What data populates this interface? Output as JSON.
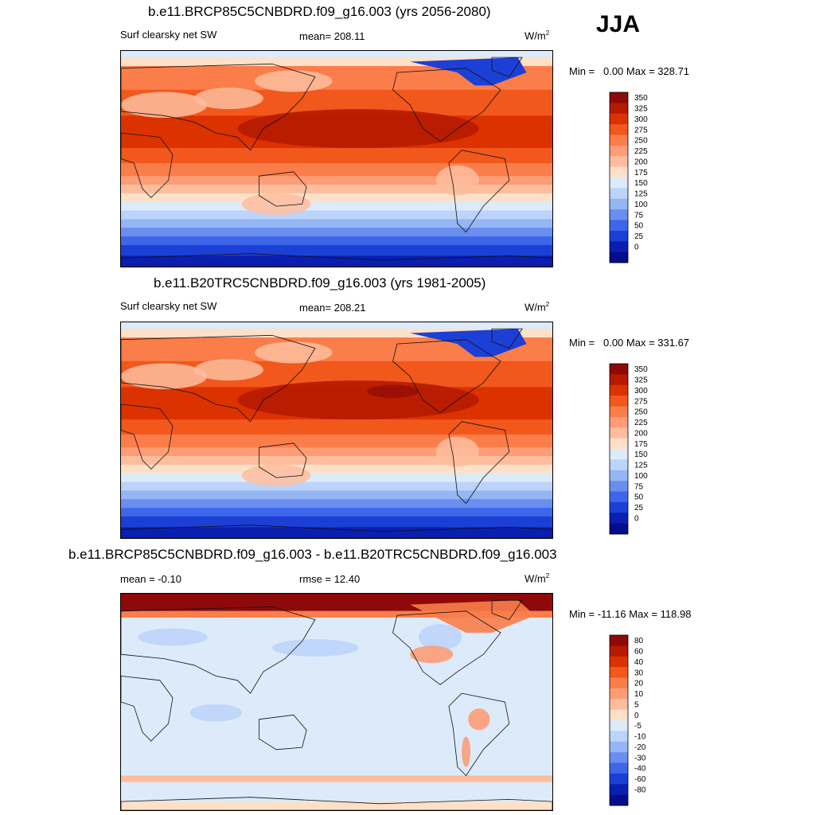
{
  "season": "JJA",
  "units_base": "W/m",
  "units_exp": "2",
  "panels": [
    {
      "title": "b.e11.BRCP85C5CNBDRD.f09_g16.003 (yrs 2056-2080)",
      "left_label": "Surf clearsky net SW",
      "mid_label": "mean= 208.11",
      "minmax": "Min =   0.00 Max = 328.71"
    },
    {
      "title": "b.e11.B20TRC5CNBDRD.f09_g16.003 (yrs 1981-2005)",
      "left_label": "Surf clearsky net SW",
      "mid_label": "mean= 208.21",
      "minmax": "Min =   0.00 Max = 331.67"
    },
    {
      "title": "b.e11.BRCP85C5CNBDRD.f09_g16.003 - b.e11.B20TRC5CNBDRD.f09_g16.003",
      "left_label": "mean =  -0.10",
      "mid_label": "rmse =  12.40",
      "minmax": "Min = -11.16 Max = 118.98"
    }
  ],
  "chart_data": [
    {
      "type": "heatmap",
      "title": "b.e11.BRCP85C5CNBDRD.f09_g16.003 (yrs 2056-2080)",
      "variable": "Surf clearsky net SW",
      "mean": 208.11,
      "min": 0.0,
      "max": 328.71,
      "colorbar_levels": [
        "350",
        "325",
        "300",
        "275",
        "250",
        "225",
        "200",
        "175",
        "150",
        "125",
        "100",
        "75",
        "50",
        "25",
        "0"
      ],
      "colorbar_colors": [
        "#8e0a0a",
        "#b51a00",
        "#dc3200",
        "#f2571c",
        "#fa7d4a",
        "#fc9d76",
        "#fdbd9d",
        "#fde0c8",
        "#dceafa",
        "#bcd4fa",
        "#94b6f5",
        "#6a8ef0",
        "#3e66ea",
        "#1c3fd6",
        "#0a1fb0",
        "#050d8a"
      ]
    },
    {
      "type": "heatmap",
      "title": "b.e11.B20TRC5CNBDRD.f09_g16.003 (yrs 1981-2005)",
      "variable": "Surf clearsky net SW",
      "mean": 208.21,
      "min": 0.0,
      "max": 331.67,
      "colorbar_levels": [
        "350",
        "325",
        "300",
        "275",
        "250",
        "225",
        "200",
        "175",
        "150",
        "125",
        "100",
        "75",
        "50",
        "25",
        "0"
      ],
      "colorbar_colors": [
        "#8e0a0a",
        "#b51a00",
        "#dc3200",
        "#f2571c",
        "#fa7d4a",
        "#fc9d76",
        "#fdbd9d",
        "#fde0c8",
        "#dceafa",
        "#bcd4fa",
        "#94b6f5",
        "#6a8ef0",
        "#3e66ea",
        "#1c3fd6",
        "#0a1fb0",
        "#050d8a"
      ]
    },
    {
      "type": "heatmap",
      "title": "b.e11.BRCP85C5CNBDRD.f09_g16.003 - b.e11.B20TRC5CNBDRD.f09_g16.003",
      "mean": -0.1,
      "rmse": 12.4,
      "min": -11.16,
      "max": 118.98,
      "colorbar_levels": [
        "80",
        "60",
        "40",
        "30",
        "20",
        "10",
        "5",
        "0",
        "-5",
        "-10",
        "-20",
        "-30",
        "-40",
        "-60",
        "-80"
      ],
      "colorbar_colors": [
        "#8e0a0a",
        "#b51a00",
        "#dc3200",
        "#f2571c",
        "#fa7d4a",
        "#fc9d76",
        "#fdbd9d",
        "#fde0c8",
        "#dceafa",
        "#bcd4fa",
        "#94b6f5",
        "#6a8ef0",
        "#3e66ea",
        "#1c3fd6",
        "#0a1fb0",
        "#050d8a"
      ]
    }
  ]
}
